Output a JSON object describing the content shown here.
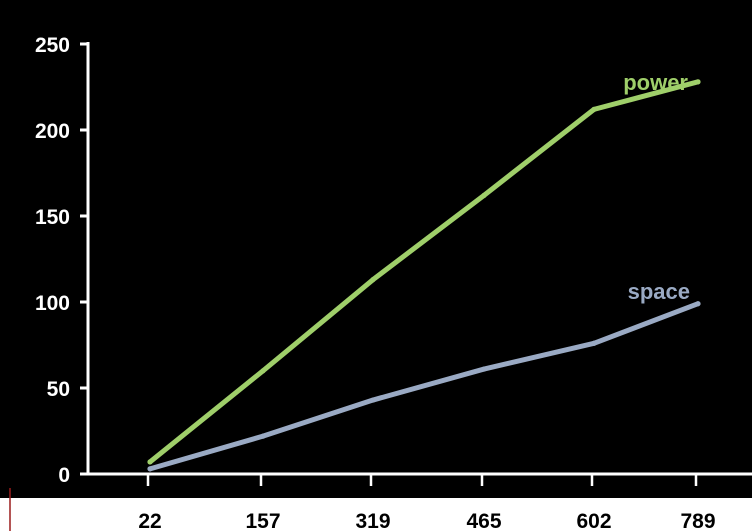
{
  "chart_data": {
    "type": "line",
    "title": "",
    "xlabel": "",
    "ylabel": "",
    "categories": [
      "22",
      "157",
      "319",
      "465",
      "602",
      "789"
    ],
    "ylim": [
      0,
      250
    ],
    "yticks": [
      0,
      50,
      100,
      150,
      200,
      250
    ],
    "grid": false,
    "legend": "inline labels at line ends",
    "series": [
      {
        "name": "power",
        "color": "#9fcf6a",
        "values": [
          7,
          60,
          113,
          162,
          212,
          228
        ]
      },
      {
        "name": "space",
        "color": "#9aaac4",
        "values": [
          3,
          22,
          43,
          61,
          76,
          99
        ]
      }
    ],
    "colors": {
      "plot_background": "#000000",
      "axis": "#ffffff",
      "tick_text": "#ffffff",
      "x_tick_text": "#000000",
      "accent_line": "#9a1c1c"
    }
  }
}
